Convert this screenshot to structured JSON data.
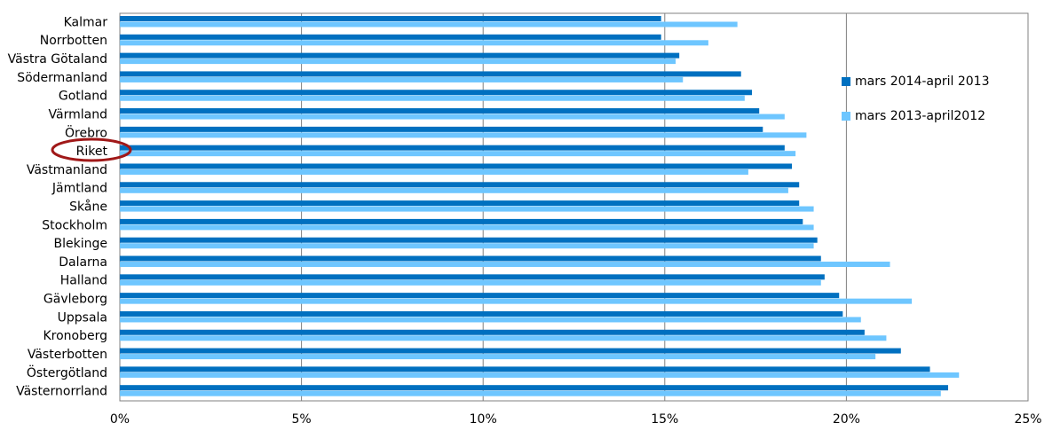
{
  "chart_data": {
    "type": "hbar",
    "categories": [
      "Kalmar",
      "Norrbotten",
      "Västra Götaland",
      "Södermanland",
      "Gotland",
      "Värmland",
      "Örebro",
      "Riket",
      "Västmanland",
      "Jämtland",
      "Skåne",
      "Stockholm",
      "Blekinge",
      "Dalarna",
      "Halland",
      "Gävleborg",
      "Uppsala",
      "Kronoberg",
      "Västerbotten",
      "Östergötland",
      "Västernorrland"
    ],
    "series": [
      {
        "name": "mars 2014-april 2013",
        "color": "#0070c0",
        "values": [
          14.9,
          14.9,
          15.4,
          17.1,
          17.4,
          17.6,
          17.7,
          18.3,
          18.5,
          18.7,
          18.7,
          18.8,
          19.2,
          19.3,
          19.4,
          19.8,
          19.9,
          20.5,
          21.5,
          22.3,
          22.8
        ]
      },
      {
        "name": "mars 2013-april2012",
        "color": "#6ec6ff",
        "values": [
          17.0,
          16.2,
          15.3,
          15.5,
          17.2,
          18.3,
          18.9,
          18.6,
          17.3,
          18.4,
          19.1,
          19.1,
          19.1,
          21.2,
          19.3,
          21.8,
          20.4,
          21.1,
          20.8,
          23.1,
          22.6
        ]
      }
    ],
    "xlim": [
      0,
      25
    ],
    "xticks": [
      {
        "value": 0,
        "label": "0%"
      },
      {
        "value": 5,
        "label": "5%"
      },
      {
        "value": 10,
        "label": "10%"
      },
      {
        "value": 15,
        "label": "15%"
      },
      {
        "value": 20,
        "label": "20%"
      },
      {
        "value": 25,
        "label": "25%"
      }
    ],
    "grid": true
  }
}
